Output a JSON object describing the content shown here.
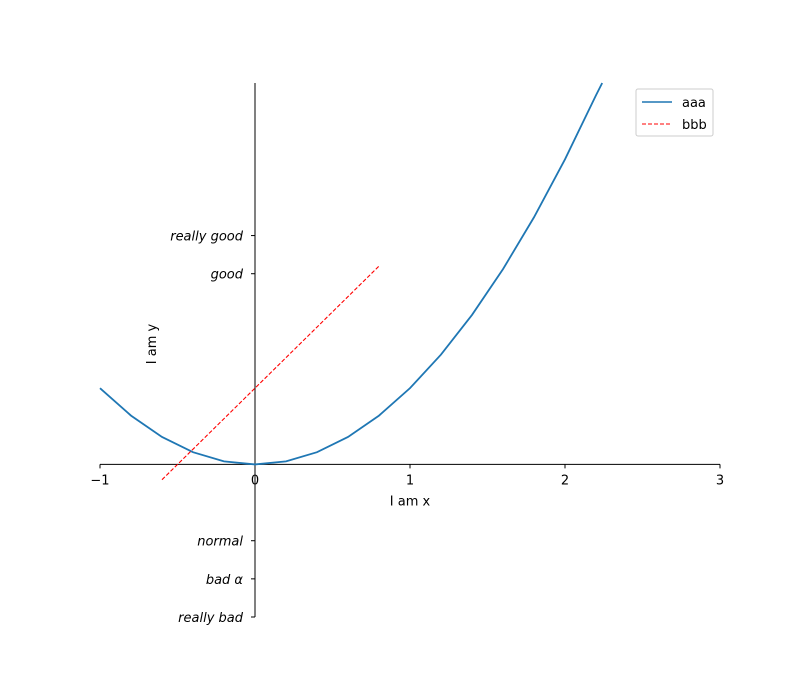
{
  "chart_data": {
    "type": "line",
    "xlabel": "I am x",
    "ylabel": "I am y",
    "xlim": [
      -1,
      3
    ],
    "ylim": [
      -2,
      5
    ],
    "x_ticks": [
      {
        "value": -1,
        "label": "−1"
      },
      {
        "value": 0,
        "label": "0"
      },
      {
        "value": 1,
        "label": "1"
      },
      {
        "value": 2,
        "label": "2"
      },
      {
        "value": 3,
        "label": "3"
      }
    ],
    "y_ticks": [
      {
        "value": -2,
        "label": "really bad"
      },
      {
        "value": -1.5,
        "label": "bad α"
      },
      {
        "value": -1,
        "label": "normal"
      },
      {
        "value": 2.5,
        "label": "good"
      },
      {
        "value": 3,
        "label": "really good"
      }
    ],
    "spines": "centered at origin",
    "legend_position": "upper-right",
    "series": [
      {
        "name": "aaa",
        "color": "#1f77b4",
        "style": "solid",
        "function": "x^2",
        "x": [
          -1,
          -0.8,
          -0.6,
          -0.4,
          -0.2,
          0,
          0.2,
          0.4,
          0.6,
          0.8,
          1,
          1.2,
          1.4,
          1.6,
          1.8,
          2,
          2.2,
          2.24
        ],
        "y": [
          1,
          0.64,
          0.36,
          0.16,
          0.04,
          0,
          0.04,
          0.16,
          0.36,
          0.64,
          1,
          1.44,
          1.96,
          2.56,
          3.24,
          4,
          4.84,
          5
        ]
      },
      {
        "name": "bbb",
        "color": "#ff0000",
        "style": "dashed",
        "function": "2x+1",
        "x": [
          -0.6,
          0.8
        ],
        "y": [
          -0.2,
          2.6
        ]
      }
    ]
  }
}
